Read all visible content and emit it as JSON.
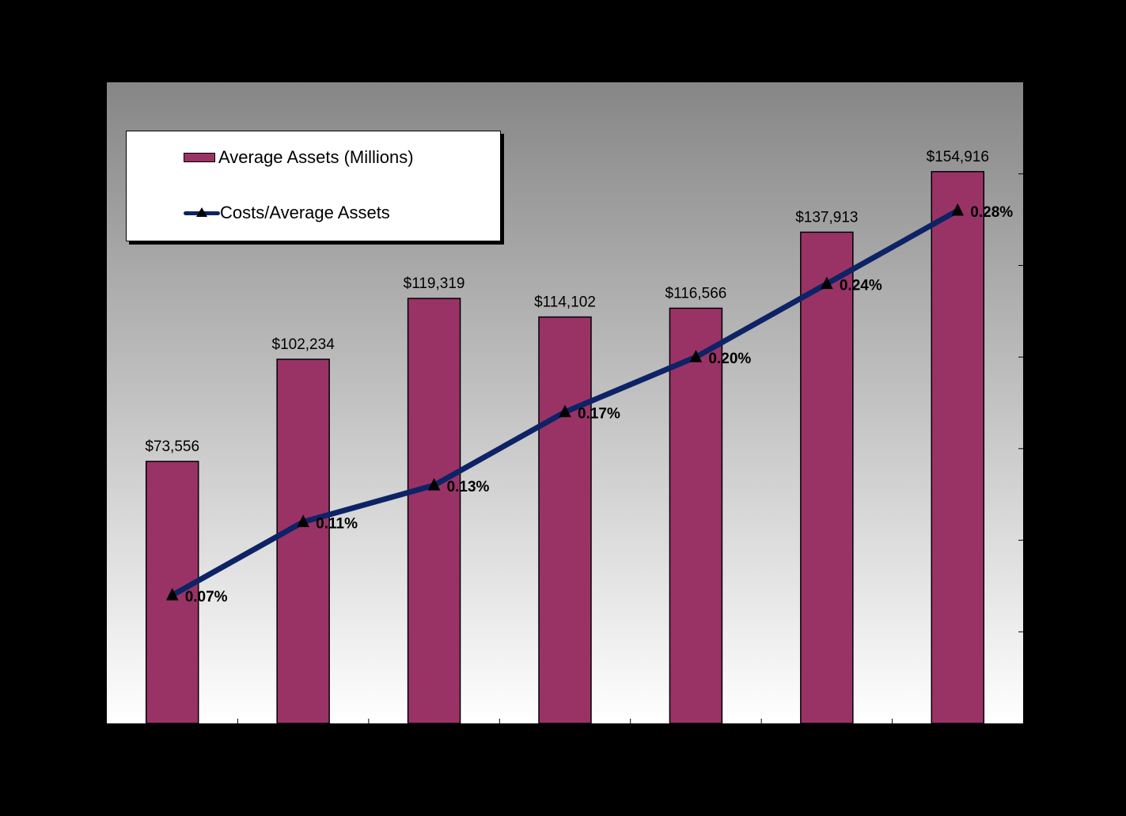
{
  "chart_data": {
    "type": "bar",
    "categories": [
      "",
      "",
      "",
      "",
      "",
      "",
      ""
    ],
    "series": [
      {
        "name": "Average Assets (Millions)",
        "type": "bar",
        "axis": "left",
        "values": [
          73556,
          102234,
          119319,
          114102,
          116566,
          137913,
          154916
        ],
        "labels": [
          "$73,556",
          "$102,234",
          "$119,319",
          "$114,102",
          "$116,566",
          "$137,913",
          "$154,916"
        ],
        "color": "#993366"
      },
      {
        "name": "Costs/Average Assets",
        "type": "line",
        "axis": "right",
        "values": [
          0.07,
          0.11,
          0.13,
          0.17,
          0.2,
          0.24,
          0.28
        ],
        "labels": [
          "0.07%",
          "0.11%",
          "0.13%",
          "0.17%",
          "0.20%",
          "0.24%",
          "0.28%"
        ],
        "color": "#0d2366",
        "marker": "triangle"
      }
    ],
    "left_axis": {
      "ylim": [
        0,
        180000
      ],
      "tick_step": 20000,
      "tick_labels_visible": false
    },
    "right_axis": {
      "ylim": [
        0,
        0.35
      ],
      "tick_step": 0.05,
      "tick_labels_visible": false
    },
    "title": "",
    "xlabel": "",
    "ylabel": "",
    "grid": false,
    "legend_position": "top-left",
    "background": "vertical-gradient gray-to-white",
    "gradient_top_color": "#868686",
    "gradient_bottom_color": "#ffffff"
  }
}
